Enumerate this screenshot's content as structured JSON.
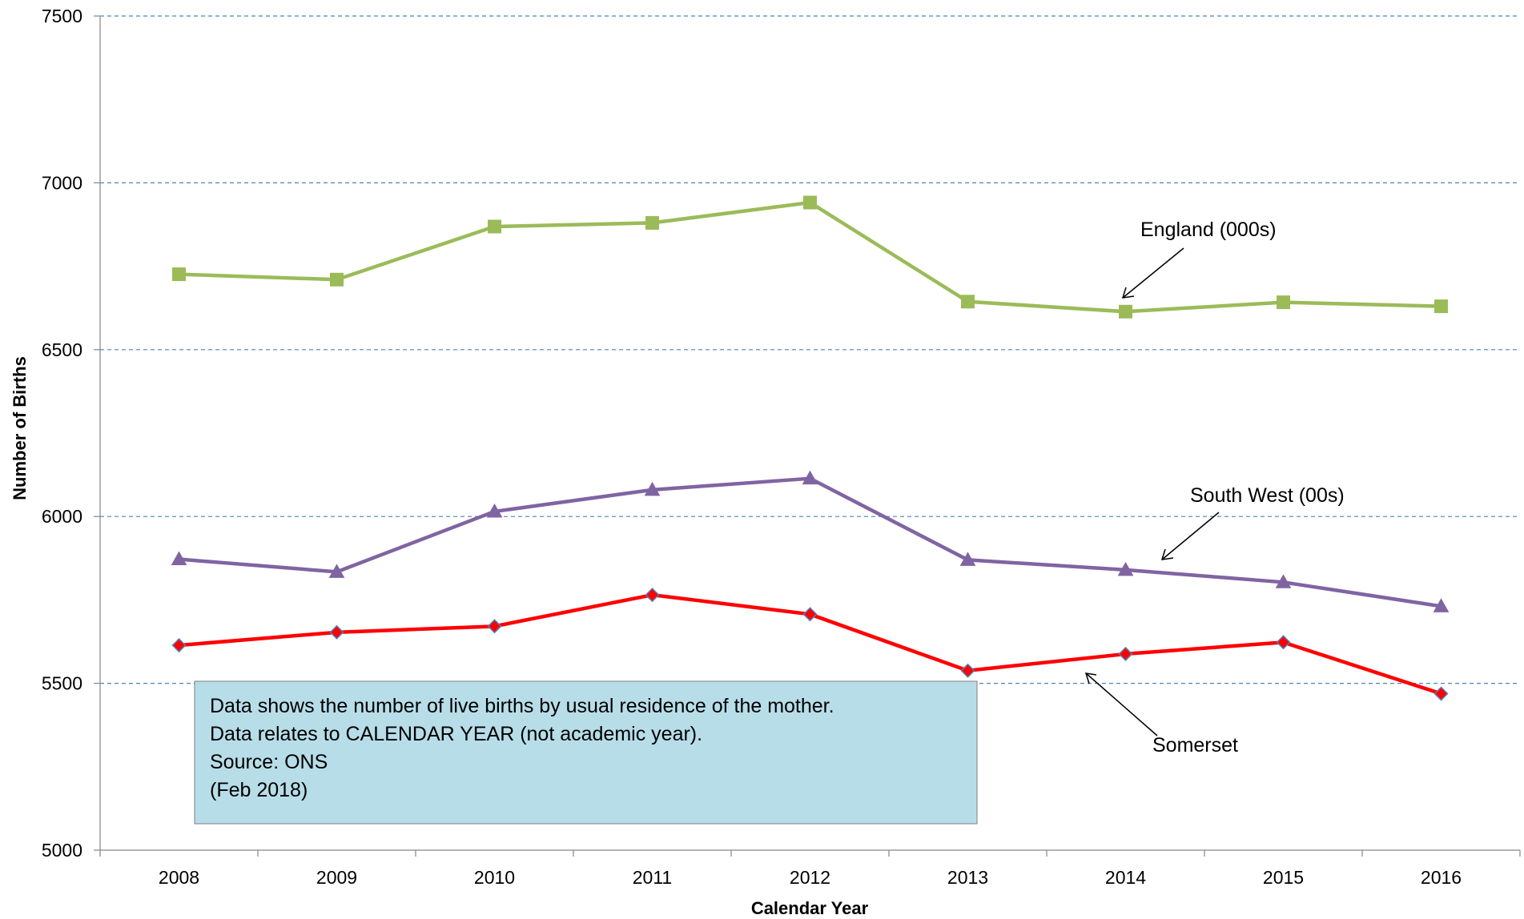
{
  "chart_data": {
    "type": "line",
    "title": "",
    "xlabel": "Calendar Year",
    "ylabel": "Number of Births",
    "categories": [
      "2008",
      "2009",
      "2010",
      "2011",
      "2012",
      "2013",
      "2014",
      "2015",
      "2016"
    ],
    "ylim": [
      5000,
      7500
    ],
    "yticks": [
      "5000",
      "5500",
      "6000",
      "6500",
      "7000",
      "7500"
    ],
    "grid": "horizontal dashed",
    "legend": "none",
    "series": [
      {
        "name": "England (000s)",
        "values": [
          6726,
          6710,
          6869,
          6880,
          6941,
          6644,
          6614,
          6642,
          6630
        ],
        "color": "#9bbb59",
        "marker": "square"
      },
      {
        "name": "South West (00s)",
        "values": [
          5872,
          5834,
          6015,
          6080,
          6114,
          5870,
          5840,
          5803,
          5731
        ],
        "color": "#8064a2",
        "marker": "triangle"
      },
      {
        "name": "Somerset",
        "values": [
          5614,
          5653,
          5671,
          5765,
          5707,
          5538,
          5588,
          5623,
          5469
        ],
        "color": "#ff0000",
        "marker": "diamond"
      }
    ],
    "annotations": [
      "Data shows the number of live births by usual residence of the mother.",
      "Data relates to CALENDAR YEAR (not academic year).",
      "Source: ONS",
      "(Feb 2018)"
    ]
  }
}
